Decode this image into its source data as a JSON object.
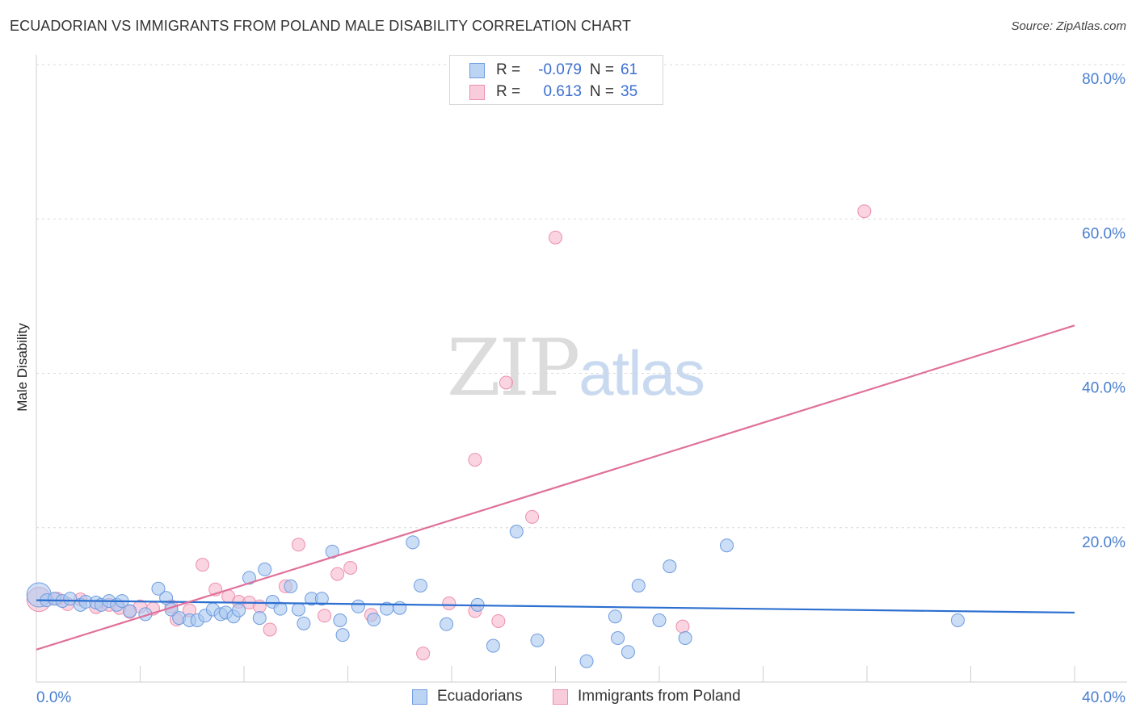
{
  "header": {
    "title": "ECUADORIAN VS IMMIGRANTS FROM POLAND MALE DISABILITY CORRELATION CHART",
    "source": "Source: ZipAtlas.com"
  },
  "watermark": {
    "zip": "ZIP",
    "atlas": "atlas"
  },
  "legend_top": {
    "rows": [
      {
        "r_label": "R =",
        "r_value": "-0.079",
        "n_label": "N =",
        "n_value": "61"
      },
      {
        "r_label": "R =",
        "r_value": "0.613",
        "n_label": "N =",
        "n_value": "35"
      }
    ]
  },
  "legend_bottom": {
    "series1": "Ecuadorians",
    "series2": "Immigrants from Poland"
  },
  "colors": {
    "blue_fill": "#a9c8f0",
    "blue_stroke": "#6f9ce0",
    "blue_line": "#2c6fd0",
    "pink_fill": "#f6b8cb",
    "pink_stroke": "#ec90ae",
    "pink_line": "#e0709a",
    "tick_text": "#4a7fcf",
    "grid": "#d9d9d9"
  },
  "chart_data": {
    "type": "scatter",
    "title": "ECUADORIAN VS IMMIGRANTS FROM POLAND MALE DISABILITY CORRELATION CHART",
    "xlabel": "",
    "ylabel": "Male Disability",
    "xlim": [
      0,
      40
    ],
    "ylim": [
      0,
      80
    ],
    "x_tick_labels": [
      {
        "value": 0,
        "label": "0.0%"
      },
      {
        "value": 40,
        "label": "40.0%"
      }
    ],
    "y_tick_labels": [
      {
        "value": 20,
        "label": "20.0%"
      },
      {
        "value": 40,
        "label": "40.0%"
      },
      {
        "value": 60,
        "label": "60.0%"
      },
      {
        "value": 80,
        "label": "80.0%"
      }
    ],
    "x_minor_ticks": [
      0,
      4,
      8,
      12,
      16,
      20,
      24,
      28,
      32,
      36,
      40
    ],
    "grid": "horizontal dashed",
    "series": [
      {
        "name": "Ecuadorians",
        "color": "blue",
        "r": -0.079,
        "n": 61,
        "trend": {
          "x": [
            0,
            40
          ],
          "y": [
            10.6,
            9.0
          ]
        },
        "points": [
          [
            0.1,
            11.3,
            "large"
          ],
          [
            0.4,
            10.6
          ],
          [
            0.7,
            10.8
          ],
          [
            1.0,
            10.5
          ],
          [
            1.3,
            10.8
          ],
          [
            1.7,
            10.0
          ],
          [
            1.9,
            10.4
          ],
          [
            2.3,
            10.3
          ],
          [
            2.5,
            10.0
          ],
          [
            2.8,
            10.5
          ],
          [
            3.1,
            10.0
          ],
          [
            3.3,
            10.5
          ],
          [
            3.6,
            9.2
          ],
          [
            4.2,
            8.8
          ],
          [
            4.7,
            12.1
          ],
          [
            5.0,
            10.9
          ],
          [
            5.2,
            9.4
          ],
          [
            5.5,
            8.3
          ],
          [
            5.9,
            8.0
          ],
          [
            6.2,
            8.0
          ],
          [
            6.5,
            8.6
          ],
          [
            6.8,
            9.4
          ],
          [
            7.1,
            8.8
          ],
          [
            7.3,
            9.0
          ],
          [
            7.6,
            8.5
          ],
          [
            7.8,
            9.3
          ],
          [
            8.2,
            13.5
          ],
          [
            8.6,
            8.3
          ],
          [
            8.8,
            14.6
          ],
          [
            9.1,
            10.4
          ],
          [
            9.4,
            9.5
          ],
          [
            9.8,
            12.4
          ],
          [
            10.1,
            9.4
          ],
          [
            10.3,
            7.6
          ],
          [
            10.6,
            10.8
          ],
          [
            11.0,
            10.8
          ],
          [
            11.4,
            16.9
          ],
          [
            11.7,
            8.0
          ],
          [
            11.8,
            6.1
          ],
          [
            12.4,
            9.8
          ],
          [
            13.0,
            8.1
          ],
          [
            13.5,
            9.5
          ],
          [
            14.0,
            9.6
          ],
          [
            14.5,
            18.1
          ],
          [
            14.8,
            12.5
          ],
          [
            15.8,
            7.5
          ],
          [
            17.0,
            10.0
          ],
          [
            17.6,
            4.7
          ],
          [
            18.5,
            19.5
          ],
          [
            19.3,
            5.4
          ],
          [
            21.2,
            2.7
          ],
          [
            22.3,
            8.5
          ],
          [
            22.4,
            5.7
          ],
          [
            22.8,
            3.9
          ],
          [
            23.2,
            12.5
          ],
          [
            24.0,
            8.0
          ],
          [
            24.4,
            15.0
          ],
          [
            25.0,
            5.7
          ],
          [
            26.6,
            17.7
          ],
          [
            35.5,
            8.0
          ]
        ]
      },
      {
        "name": "Immigrants from Poland",
        "color": "pink",
        "r": 0.613,
        "n": 35,
        "trend": {
          "x": [
            0,
            40
          ],
          "y": [
            4.2,
            46.2
          ]
        },
        "points": [
          [
            0.1,
            10.7,
            "large"
          ],
          [
            0.8,
            10.8
          ],
          [
            1.2,
            10.1
          ],
          [
            1.7,
            10.7
          ],
          [
            2.3,
            9.7
          ],
          [
            2.8,
            10.0
          ],
          [
            3.2,
            9.6
          ],
          [
            3.6,
            9.1
          ],
          [
            4.0,
            9.8
          ],
          [
            4.5,
            9.5
          ],
          [
            5.2,
            9.8
          ],
          [
            5.4,
            8.1
          ],
          [
            5.9,
            9.3
          ],
          [
            6.4,
            15.2
          ],
          [
            6.9,
            12.0
          ],
          [
            7.4,
            11.1
          ],
          [
            7.8,
            10.4
          ],
          [
            8.2,
            10.3
          ],
          [
            8.6,
            9.8
          ],
          [
            9.0,
            6.8
          ],
          [
            9.6,
            12.4
          ],
          [
            10.1,
            17.8
          ],
          [
            11.1,
            8.6
          ],
          [
            11.6,
            14.0
          ],
          [
            12.1,
            14.8
          ],
          [
            12.9,
            8.7
          ],
          [
            14.9,
            3.7
          ],
          [
            15.9,
            10.2
          ],
          [
            16.9,
            9.2
          ],
          [
            16.9,
            28.8
          ],
          [
            17.8,
            7.9
          ],
          [
            18.1,
            38.8
          ],
          [
            19.1,
            21.4
          ],
          [
            20.0,
            57.6
          ],
          [
            24.9,
            7.2
          ],
          [
            31.9,
            61.0
          ]
        ]
      }
    ]
  }
}
